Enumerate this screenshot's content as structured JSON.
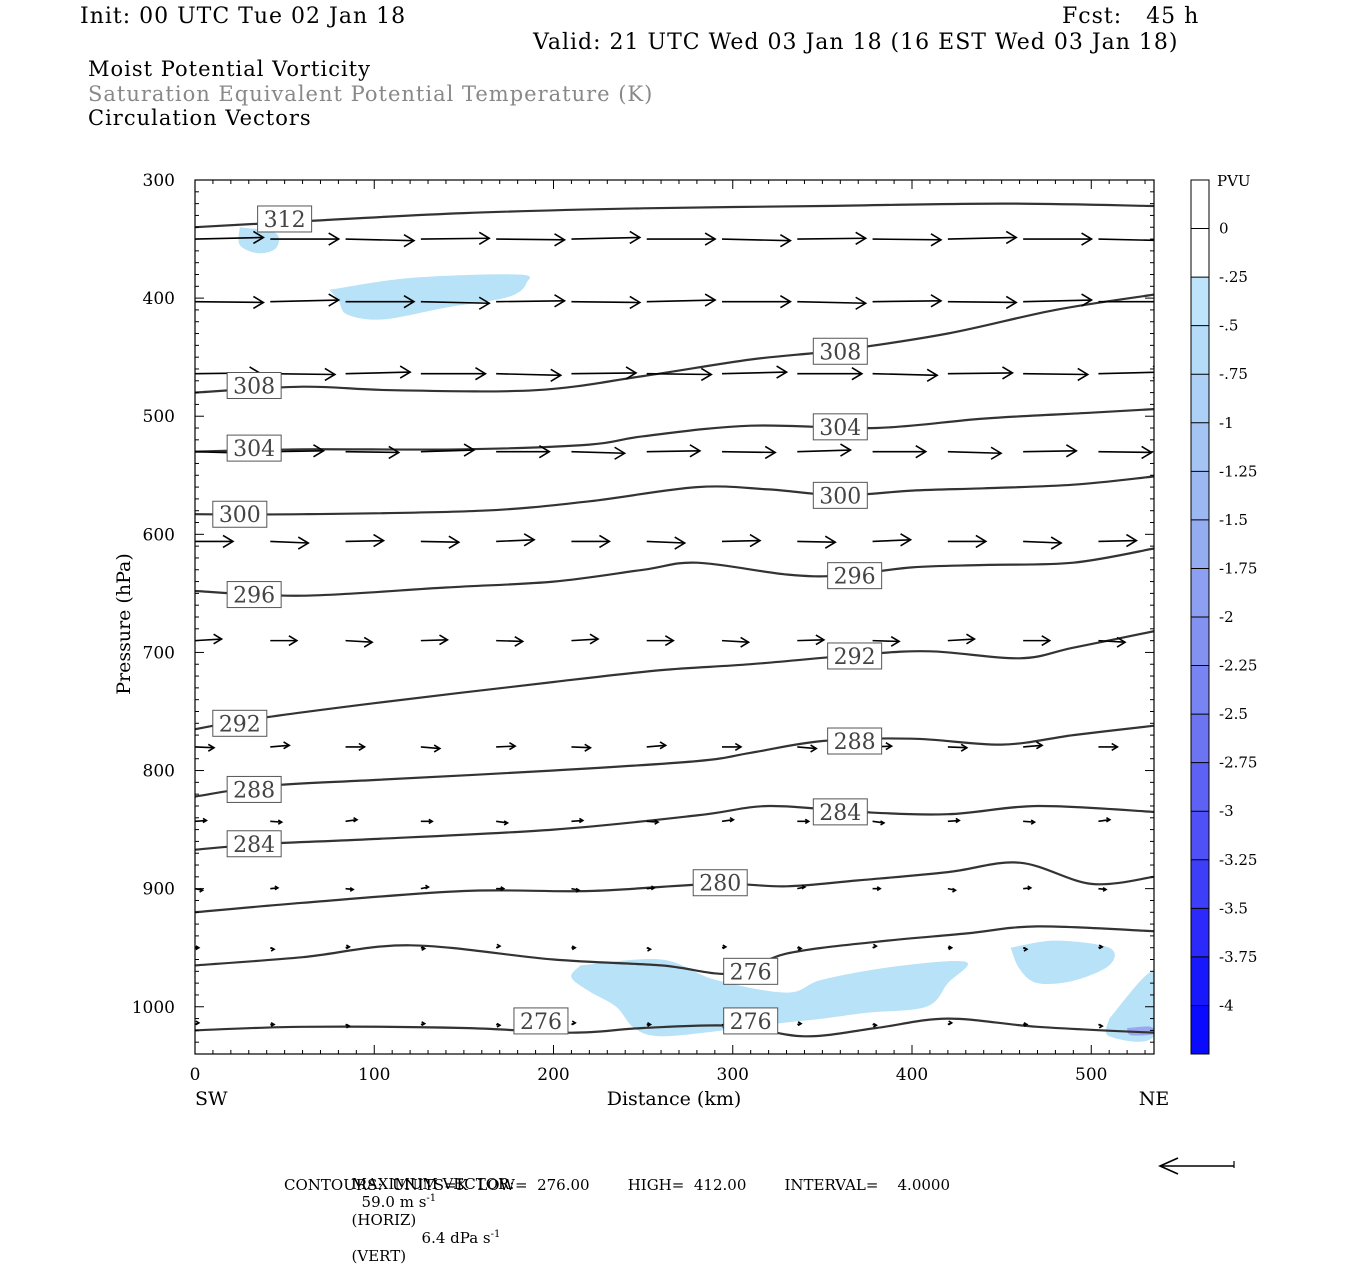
{
  "header": {
    "init": "Init: 00 UTC Tue 02 Jan 18",
    "fcst": "Fcst:   45 h",
    "valid": "Valid: 21 UTC Wed 03 Jan 18 (16 EST Wed 03 Jan 18)",
    "fields": {
      "pv": "Moist Potential Vorticity",
      "theta": "Saturation Equivalent Potential Temperature (K)",
      "vectors": "Circulation Vectors"
    }
  },
  "colors": {
    "pv_fill": "#b8e2f8",
    "pv_deep": "#9aa6f0",
    "contour": "#333333",
    "axis": "#000000"
  },
  "chart_data": {
    "type": "contour",
    "xlabel": "Distance (km)",
    "ylabel": "Pressure (hPa)",
    "x_ticks": [
      0,
      100,
      200,
      300,
      400,
      500
    ],
    "y_ticks": [
      300,
      400,
      500,
      600,
      700,
      800,
      900,
      1000
    ],
    "xlim": [
      0,
      535
    ],
    "ylim": [
      300,
      1040
    ],
    "y_inverted": true,
    "left_end": "SW",
    "right_end": "NE",
    "contour_units": "K",
    "contours": [
      {
        "level": 312,
        "points": [
          [
            0,
            340
          ],
          [
            60,
            335
          ],
          [
            150,
            328
          ],
          [
            250,
            324
          ],
          [
            350,
            322
          ],
          [
            450,
            320
          ],
          [
            535,
            322
          ]
        ],
        "labels": [
          [
            50,
            333
          ]
        ]
      },
      {
        "level": 308,
        "points": [
          [
            0,
            480
          ],
          [
            60,
            475
          ],
          [
            110,
            478
          ],
          [
            190,
            478
          ],
          [
            250,
            466
          ],
          [
            310,
            452
          ],
          [
            360,
            444
          ],
          [
            420,
            430
          ],
          [
            480,
            410
          ],
          [
            535,
            397
          ]
        ],
        "labels": [
          [
            33,
            474
          ],
          [
            360,
            445
          ]
        ]
      },
      {
        "level": 304,
        "points": [
          [
            0,
            530
          ],
          [
            60,
            528
          ],
          [
            150,
            528
          ],
          [
            220,
            524
          ],
          [
            250,
            517
          ],
          [
            310,
            508
          ],
          [
            380,
            510
          ],
          [
            440,
            502
          ],
          [
            500,
            497
          ],
          [
            535,
            494
          ]
        ],
        "labels": [
          [
            33,
            527
          ],
          [
            360,
            509
          ]
        ]
      },
      {
        "level": 300,
        "points": [
          [
            0,
            583
          ],
          [
            60,
            583
          ],
          [
            160,
            580
          ],
          [
            220,
            572
          ],
          [
            280,
            560
          ],
          [
            320,
            562
          ],
          [
            360,
            567
          ],
          [
            400,
            563
          ],
          [
            440,
            561
          ],
          [
            490,
            558
          ],
          [
            535,
            551
          ]
        ],
        "labels": [
          [
            25,
            583
          ],
          [
            360,
            567
          ]
        ]
      },
      {
        "level": 296,
        "points": [
          [
            0,
            648
          ],
          [
            60,
            652
          ],
          [
            140,
            645
          ],
          [
            200,
            640
          ],
          [
            250,
            630
          ],
          [
            280,
            624
          ],
          [
            330,
            634
          ],
          [
            360,
            635
          ],
          [
            400,
            628
          ],
          [
            440,
            626
          ],
          [
            490,
            624
          ],
          [
            535,
            612
          ]
        ],
        "labels": [
          [
            33,
            651
          ],
          [
            368,
            635
          ]
        ]
      },
      {
        "level": 292,
        "points": [
          [
            0,
            765
          ],
          [
            30,
            757
          ],
          [
            100,
            743
          ],
          [
            200,
            725
          ],
          [
            260,
            715
          ],
          [
            310,
            710
          ],
          [
            370,
            702
          ],
          [
            410,
            699
          ],
          [
            460,
            705
          ],
          [
            490,
            696
          ],
          [
            535,
            682
          ]
        ],
        "labels": [
          [
            25,
            760
          ],
          [
            368,
            703
          ]
        ]
      },
      {
        "level": 288,
        "points": [
          [
            0,
            822
          ],
          [
            40,
            813
          ],
          [
            100,
            808
          ],
          [
            200,
            800
          ],
          [
            280,
            792
          ],
          [
            310,
            785
          ],
          [
            350,
            775
          ],
          [
            400,
            773
          ],
          [
            450,
            778
          ],
          [
            490,
            770
          ],
          [
            535,
            762
          ]
        ],
        "labels": [
          [
            33,
            816
          ],
          [
            368,
            775
          ]
        ]
      },
      {
        "level": 284,
        "points": [
          [
            0,
            867
          ],
          [
            40,
            862
          ],
          [
            100,
            858
          ],
          [
            200,
            850
          ],
          [
            280,
            838
          ],
          [
            320,
            830
          ],
          [
            370,
            835
          ],
          [
            420,
            837
          ],
          [
            470,
            830
          ],
          [
            535,
            835
          ]
        ],
        "labels": [
          [
            33,
            862
          ],
          [
            360,
            835
          ]
        ]
      },
      {
        "level": 280,
        "points": [
          [
            0,
            920
          ],
          [
            60,
            912
          ],
          [
            150,
            902
          ],
          [
            220,
            902
          ],
          [
            290,
            896
          ],
          [
            330,
            898
          ],
          [
            370,
            893
          ],
          [
            420,
            886
          ],
          [
            460,
            878
          ],
          [
            500,
            896
          ],
          [
            535,
            890
          ]
        ],
        "labels": [
          [
            293,
            895
          ]
        ]
      },
      {
        "level": 276,
        "points": [
          [
            0,
            965
          ],
          [
            60,
            958
          ],
          [
            120,
            948
          ],
          [
            200,
            960
          ],
          [
            260,
            965
          ],
          [
            300,
            972
          ],
          [
            330,
            955
          ],
          [
            380,
            945
          ],
          [
            430,
            938
          ],
          [
            470,
            932
          ],
          [
            535,
            936
          ]
        ],
        "labels": [
          [
            310,
            970
          ]
        ]
      },
      {
        "level": 276,
        "points": [
          [
            0,
            1020
          ],
          [
            60,
            1017
          ],
          [
            150,
            1018
          ],
          [
            210,
            1022
          ],
          [
            250,
            1018
          ],
          [
            300,
            1016
          ],
          [
            340,
            1025
          ],
          [
            380,
            1018
          ],
          [
            420,
            1010
          ],
          [
            470,
            1017
          ],
          [
            535,
            1022
          ]
        ],
        "labels": [
          [
            193,
            1012
          ],
          [
            310,
            1012
          ]
        ]
      }
    ],
    "pv_colorbar": {
      "title": "PVU",
      "levels": [
        "0",
        "-.25",
        "-.5",
        "-.75",
        "-1",
        "-1.25",
        "-1.5",
        "-1.75",
        "-2",
        "-2.25",
        "-2.5",
        "-2.75",
        "-3",
        "-3.25",
        "-3.5",
        "-3.75",
        "-4"
      ],
      "colors": [
        "#ffffff",
        "#ffffff",
        "#bde4fa",
        "#b4dbf8",
        "#acd0f6",
        "#a4c4f4",
        "#9cb8f2",
        "#94acf0",
        "#8c9ff0",
        "#8392f0",
        "#7884f2",
        "#6c74f2",
        "#5e62f4",
        "#4f50f6",
        "#3d3ef8",
        "#2b2afa",
        "#1818fc",
        "#0a0aff"
      ]
    },
    "pv_regions": [
      {
        "level": -0.25,
        "points": [
          [
            25,
            340
          ],
          [
            45,
            345
          ],
          [
            45,
            358
          ],
          [
            35,
            362
          ],
          [
            25,
            355
          ]
        ]
      },
      {
        "level": -0.25,
        "points": [
          [
            75,
            393
          ],
          [
            120,
            383
          ],
          [
            180,
            380
          ],
          [
            185,
            387
          ],
          [
            175,
            399
          ],
          [
            140,
            408
          ],
          [
            105,
            418
          ],
          [
            85,
            414
          ],
          [
            80,
            402
          ]
        ]
      },
      {
        "level": -0.25,
        "points": [
          [
            215,
            965
          ],
          [
            260,
            960
          ],
          [
            290,
            977
          ],
          [
            330,
            988
          ],
          [
            350,
            977
          ],
          [
            390,
            966
          ],
          [
            430,
            962
          ],
          [
            420,
            980
          ],
          [
            408,
            1000
          ],
          [
            375,
            1005
          ],
          [
            350,
            1010
          ],
          [
            320,
            1015
          ],
          [
            295,
            1020
          ],
          [
            260,
            1025
          ],
          [
            245,
            1018
          ],
          [
            235,
            1000
          ],
          [
            220,
            987
          ],
          [
            210,
            975
          ]
        ]
      },
      {
        "level": -0.25,
        "points": [
          [
            455,
            950
          ],
          [
            480,
            944
          ],
          [
            510,
            950
          ],
          [
            510,
            965
          ],
          [
            490,
            978
          ],
          [
            470,
            980
          ],
          [
            460,
            968
          ]
        ]
      },
      {
        "level": -0.25,
        "points": [
          [
            510,
            1010
          ],
          [
            535,
            970
          ],
          [
            535,
            1025
          ],
          [
            510,
            1025
          ]
        ]
      },
      {
        "level": -0.5,
        "points": [
          [
            520,
            1018
          ],
          [
            533,
            1017
          ],
          [
            535,
            1023
          ],
          [
            522,
            1024
          ]
        ]
      }
    ],
    "vectors": {
      "rows": [
        {
          "p": 350,
          "u": 36,
          "w": 0
        },
        {
          "p": 403,
          "u": 36,
          "w": 0
        },
        {
          "p": 464,
          "u": 34,
          "w": 0
        },
        {
          "p": 530,
          "u": 28,
          "w": 0
        },
        {
          "p": 606,
          "u": 20,
          "w": 0
        },
        {
          "p": 690,
          "u": 14,
          "w": 0
        },
        {
          "p": 780,
          "u": 10,
          "w": 0
        },
        {
          "p": 843,
          "u": 6,
          "w": 0
        },
        {
          "p": 900,
          "u": 4,
          "w": 0
        },
        {
          "p": 950,
          "u": 2,
          "w": 0
        },
        {
          "p": 1015,
          "u": 2,
          "w": 0
        }
      ],
      "x_positions": [
        0,
        42,
        84,
        126,
        168,
        210,
        252,
        294,
        336,
        378,
        420,
        462,
        504,
        535
      ]
    }
  },
  "footer": {
    "max_vector_label": "MAXIMUM VECTOR:",
    "horiz": "59.0 m s",
    "horiz_unit": "(HORIZ)",
    "vert": "6.4 dPa s",
    "vert_unit": "(VERT)",
    "exp": "-1",
    "contours": "CONTOURS:  UNITS=K  LOW=  276.00        HIGH=  412.00        INTERVAL=    4.0000"
  }
}
